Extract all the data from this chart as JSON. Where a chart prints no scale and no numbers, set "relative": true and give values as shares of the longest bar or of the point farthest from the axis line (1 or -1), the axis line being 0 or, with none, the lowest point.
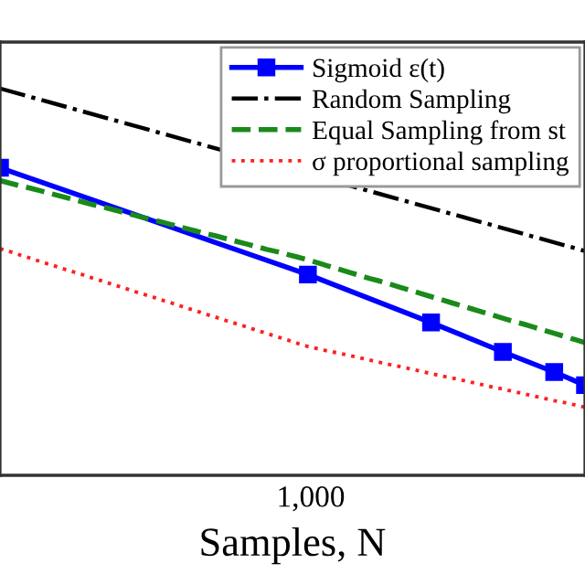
{
  "chart_data": {
    "type": "line",
    "xlabel": "Samples, N",
    "relative": true,
    "annotations": [
      "1,000"
    ],
    "categories": [
      null,
      null,
      null,
      null,
      null,
      null,
      null,
      null,
      null,
      null,
      null,
      null,
      null,
      null,
      null,
      null,
      null,
      null,
      null,
      null,
      null,
      null,
      null,
      null,
      null,
      null,
      null,
      null,
      null,
      null,
      null,
      null,
      null,
      null,
      null,
      null,
      null,
      null,
      null,
      null,
      null,
      null,
      null,
      null,
      null,
      null,
      null,
      null,
      null,
      null,
      null,
      null,
      null,
      null,
      null,
      null,
      null,
      null
    ],
    "grid": false,
    "legend": "top right",
    "series": [
      {
        "name": "Sigmoid ε(t)",
        "color": "#0000ff",
        "marker": "square",
        "line_style": "solid",
        "values": [
          0.795,
          null,
          null,
          null,
          null,
          null,
          null,
          null,
          null,
          null,
          null,
          null,
          null,
          null,
          null,
          null,
          null,
          null,
          null,
          null,
          null,
          null,
          null,
          null,
          null,
          null,
          null,
          null,
          null,
          null,
          0.519,
          null,
          null,
          null,
          null,
          null,
          null,
          null,
          null,
          null,
          null,
          null,
          0.395,
          null,
          null,
          null,
          null,
          null,
          null,
          0.319,
          null,
          null,
          null,
          null,
          0.267,
          null,
          null,
          0.233
        ]
      },
      {
        "name": "Random Sampling",
        "color": "#000000",
        "marker": "none",
        "line_style": "dashdot",
        "values": [
          1.0,
          null,
          null,
          null,
          null,
          null,
          null,
          null,
          null,
          null,
          null,
          null,
          null,
          null,
          null,
          null,
          null,
          null,
          null,
          null,
          null,
          null,
          null,
          null,
          null,
          null,
          null,
          null,
          null,
          null,
          null,
          null,
          null,
          null,
          null,
          null,
          null,
          null,
          null,
          null,
          null,
          null,
          null,
          null,
          null,
          null,
          null,
          null,
          null,
          null,
          null,
          null,
          null,
          null,
          null,
          null,
          null,
          0.58
        ]
      },
      {
        "name": "Equal Sampling from st",
        "color": "#1a8a1a",
        "marker": "none",
        "line_style": "dashed",
        "values": [
          0.762,
          0.755,
          0.748,
          0.742,
          0.735,
          0.728,
          0.721,
          0.714,
          0.707,
          0.7,
          0.694,
          0.687,
          0.68,
          0.673,
          0.666,
          0.66,
          0.653,
          0.646,
          0.639,
          0.632,
          0.625,
          0.619,
          0.612,
          0.605,
          0.598,
          0.591,
          0.584,
          0.578,
          0.571,
          0.564,
          0.557,
          0.549,
          0.541,
          0.533,
          0.525,
          0.517,
          0.509,
          0.502,
          0.494,
          0.486,
          0.478,
          0.47,
          0.462,
          0.454,
          0.446,
          0.438,
          0.43,
          0.422,
          0.414,
          0.406,
          0.398,
          0.391,
          0.383,
          0.375,
          0.367,
          0.359,
          0.351,
          0.343
        ]
      },
      {
        "name": "σ proportional sampling",
        "color": "#ff2020",
        "marker": "none",
        "line_style": "dotted",
        "values": [
          0.586,
          0.578,
          0.569,
          0.561,
          0.552,
          0.544,
          0.535,
          0.527,
          0.519,
          0.51,
          0.502,
          0.493,
          0.485,
          0.476,
          0.468,
          0.46,
          0.451,
          0.443,
          0.434,
          0.426,
          0.417,
          0.409,
          0.4,
          0.392,
          0.384,
          0.375,
          0.367,
          0.358,
          0.35,
          0.341,
          0.333,
          0.327,
          0.321,
          0.316,
          0.31,
          0.304,
          0.298,
          0.292,
          0.286,
          0.281,
          0.275,
          0.269,
          0.263,
          0.257,
          0.252,
          0.246,
          0.24,
          0.234,
          0.228,
          0.223,
          0.217,
          0.211,
          0.205,
          0.199,
          0.193,
          0.188,
          0.182,
          0.176
        ]
      }
    ]
  }
}
